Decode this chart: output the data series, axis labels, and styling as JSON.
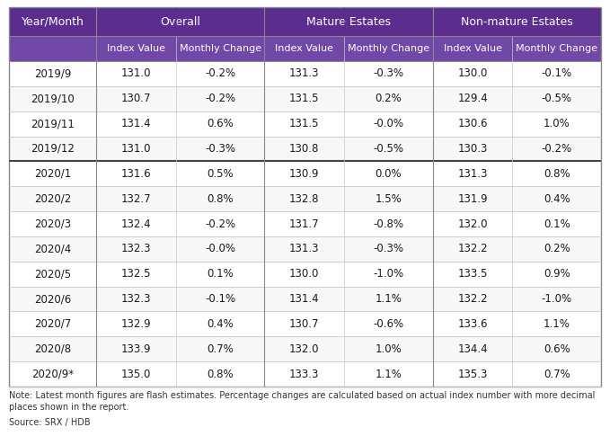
{
  "title_header": "Year/Month",
  "group_labels": [
    "Overall",
    "Mature Estates",
    "Non-mature Estates"
  ],
  "sub_labels": [
    "Index Value",
    "Monthly Change",
    "Index Value",
    "Monthly Change",
    "Index Value",
    "Monthly Change"
  ],
  "rows": [
    [
      "2019/9",
      "131.0",
      "-0.2%",
      "131.3",
      "-0.3%",
      "130.0",
      "-0.1%"
    ],
    [
      "2019/10",
      "130.7",
      "-0.2%",
      "131.5",
      "0.2%",
      "129.4",
      "-0.5%"
    ],
    [
      "2019/11",
      "131.4",
      "0.6%",
      "131.5",
      "-0.0%",
      "130.6",
      "1.0%"
    ],
    [
      "2019/12",
      "131.0",
      "-0.3%",
      "130.8",
      "-0.5%",
      "130.3",
      "-0.2%"
    ],
    [
      "2020/1",
      "131.6",
      "0.5%",
      "130.9",
      "0.0%",
      "131.3",
      "0.8%"
    ],
    [
      "2020/2",
      "132.7",
      "0.8%",
      "132.8",
      "1.5%",
      "131.9",
      "0.4%"
    ],
    [
      "2020/3",
      "132.4",
      "-0.2%",
      "131.7",
      "-0.8%",
      "132.0",
      "0.1%"
    ],
    [
      "2020/4",
      "132.3",
      "-0.0%",
      "131.3",
      "-0.3%",
      "132.2",
      "0.2%"
    ],
    [
      "2020/5",
      "132.5",
      "0.1%",
      "130.0",
      "-1.0%",
      "133.5",
      "0.9%"
    ],
    [
      "2020/6",
      "132.3",
      "-0.1%",
      "131.4",
      "1.1%",
      "132.2",
      "-1.0%"
    ],
    [
      "2020/7",
      "132.9",
      "0.4%",
      "130.7",
      "-0.6%",
      "133.6",
      "1.1%"
    ],
    [
      "2020/8",
      "133.9",
      "0.7%",
      "132.0",
      "1.0%",
      "134.4",
      "0.6%"
    ],
    [
      "2020/9*",
      "135.0",
      "0.8%",
      "133.3",
      "1.1%",
      "135.3",
      "0.7%"
    ]
  ],
  "thick_row_after": 3,
  "header_bg": "#5b2d8e",
  "subheader_bg": "#7148a8",
  "header_text_color": "#ffffff",
  "row_bg_odd": "#ffffff",
  "row_bg_even": "#f7f7f7",
  "cell_text_color": "#1a1a1a",
  "grid_color": "#c8c8c8",
  "thick_line_color": "#444444",
  "border_color": "#888888",
  "note_text": "Note: Latest month figures are flash estimates. Percentage changes are calculated based on actual index number with more decimal\nplaces shown in the report.",
  "source_text": "Source: SRX / HDB",
  "note_fontsize": 7.0,
  "cell_fontsize": 8.5,
  "header_fontsize": 9.0,
  "subheader_fontsize": 8.0
}
